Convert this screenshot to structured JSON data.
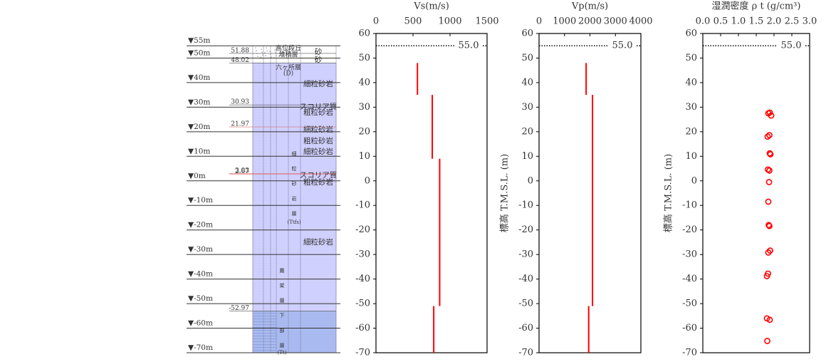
{
  "boring_log": {
    "levels": [
      {
        "value": 55,
        "label": "▼55m"
      },
      {
        "value": 50,
        "label": "▼50m"
      },
      {
        "value": 40,
        "label": "▼40m"
      },
      {
        "value": 30,
        "label": "▼30m"
      },
      {
        "value": 20,
        "label": "▼20m"
      },
      {
        "value": 10,
        "label": "▼10m"
      },
      {
        "value": 0,
        "label": "▼0m"
      },
      {
        "value": -10,
        "label": "▼-10m"
      },
      {
        "value": -20,
        "label": "▼-20m"
      },
      {
        "value": -30,
        "label": "▼-30m"
      },
      {
        "value": -40,
        "label": "▼-40m"
      },
      {
        "value": -50,
        "label": "▼-50m"
      },
      {
        "value": -60,
        "label": "▼-60m"
      },
      {
        "value": -70,
        "label": "▼-70m"
      }
    ],
    "boundaries": [
      51.88,
      48.02,
      30.93,
      21.97,
      3.03,
      2.67,
      -52.97
    ],
    "lithology": [
      "砂",
      "砂",
      "細粒砂岩",
      "スコリア質",
      "粗粒砂岩",
      "細粒砂岩",
      "粗粒砂岩",
      "細粒砂岩",
      "スコリア質",
      "粗粒砂岩",
      "細粒砂岩"
    ],
    "formations": [
      "高位段丘",
      "堆積層",
      "六ヶ所層",
      "(D)"
    ],
    "vertical_formations": [
      "細粒砂岩層",
      "(Ttfs)",
      "鷹架層下部層",
      "(Tt)"
    ]
  },
  "chart_data": [
    {
      "type": "step_profile",
      "title": "Vs(m/s)",
      "color": "#ff0000",
      "xlim": [
        0,
        1500
      ],
      "xticks": [
        0,
        500,
        1000,
        1500
      ],
      "ylim": [
        -70,
        60
      ],
      "yticks": [
        60,
        50,
        40,
        30,
        20,
        10,
        0,
        -10,
        -20,
        -30,
        -40,
        -50,
        -60,
        -70
      ],
      "reference_line": {
        "value": 55,
        "label": "55.0"
      },
      "segments": [
        {
          "value": 560,
          "top": 48,
          "bottom": 35
        },
        {
          "value": 760,
          "top": 35,
          "bottom": 9
        },
        {
          "value": 860,
          "top": 9,
          "bottom": -51
        },
        {
          "value": 780,
          "top": -51,
          "bottom": -70
        }
      ]
    },
    {
      "type": "step_profile",
      "title": "Vp(m/s)",
      "ylabel": "標高 T.M.S.L. (m)",
      "color": "#ff0000",
      "xlim": [
        0,
        4000
      ],
      "xticks": [
        0,
        1000,
        2000,
        3000,
        4000
      ],
      "ylim": [
        -70,
        60
      ],
      "yticks": [
        60,
        50,
        40,
        30,
        20,
        10,
        0,
        -10,
        -20,
        -30,
        -40,
        -50,
        -60,
        -70
      ],
      "reference_line": {
        "value": 55,
        "label": "55.0"
      },
      "segments": [
        {
          "value": 1850,
          "top": 48,
          "bottom": 35
        },
        {
          "value": 2100,
          "top": 35,
          "bottom": -51
        },
        {
          "value": 1950,
          "top": -51,
          "bottom": -70
        }
      ]
    },
    {
      "type": "scatter",
      "title": "湿潤密度 ρ t (g/cm³)",
      "ylabel": "標高 T.M.S.L. (m)",
      "color": "#ff0000",
      "xlim": [
        0,
        3
      ],
      "xticks": [
        {
          "value": 0,
          "label": "0.0"
        },
        0.5,
        {
          "value": 1,
          "label": "1.0"
        },
        1.5,
        {
          "value": 2,
          "label": "2.0"
        },
        2.5,
        {
          "value": 3,
          "label": "3.0"
        }
      ],
      "ylim": [
        -70,
        60
      ],
      "yticks": [
        60,
        50,
        40,
        30,
        20,
        10,
        0,
        -10,
        -20,
        -30,
        -40,
        -50,
        -60,
        -70
      ],
      "reference_line": {
        "value": 55,
        "label": "55.0"
      },
      "x": [
        1.84,
        1.88,
        1.92,
        1.82,
        1.87,
        1.88,
        1.9,
        1.83,
        1.87,
        1.86,
        1.84,
        1.85,
        1.87,
        1.84,
        1.89,
        1.8,
        1.83,
        1.8,
        1.88,
        1.81
      ],
      "y": [
        27.5,
        27.8,
        26.6,
        18,
        18.6,
        11.2,
        10.8,
        4.6,
        4.2,
        -0.5,
        -8.5,
        -18,
        -18.4,
        -29.2,
        -28.4,
        -38.8,
        -37.8,
        -56,
        -56.6,
        -65.2
      ]
    }
  ]
}
